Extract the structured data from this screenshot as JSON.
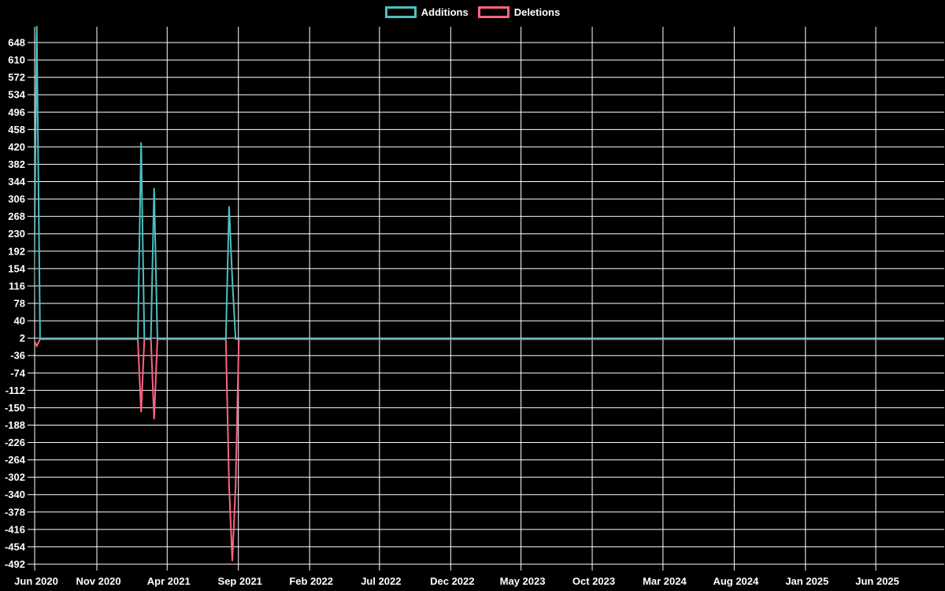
{
  "background": "#000000",
  "legend": {
    "items": [
      {
        "label": "Additions",
        "color": "#4bc0c0"
      },
      {
        "label": "Deletions",
        "color": "#ff6384"
      }
    ]
  },
  "chart_data": {
    "type": "line",
    "title": "",
    "xlabel": "",
    "ylabel": "",
    "grid": true,
    "legend_position": "top-center",
    "colors": {
      "grid": "#ffffff",
      "axis_text": "#ffffff",
      "additions": "#4bc0c0",
      "deletions": "#ff6384"
    },
    "x_axis": {
      "kind": "time",
      "start_date": "2020-06-20",
      "end_date": "2025-10-26",
      "tick_labels": [
        "Jun 2020",
        "Nov 2020",
        "Apr 2021",
        "Sep 2021",
        "Feb 2022",
        "Jul 2022",
        "Dec 2022",
        "May 2023",
        "Oct 2023",
        "Mar 2024",
        "Aug 2024",
        "Jan 2025",
        "Jun 2025"
      ],
      "tick_dates": [
        "2020-06-01",
        "2020-11-01",
        "2021-04-01",
        "2021-09-01",
        "2022-02-01",
        "2022-07-01",
        "2022-12-01",
        "2023-05-01",
        "2023-10-01",
        "2024-03-01",
        "2024-08-01",
        "2025-01-01",
        "2025-06-01"
      ]
    },
    "y_axis": {
      "min": -492,
      "max": 682,
      "tick_max": 648,
      "tick_min": -492,
      "tick_step": 38,
      "tick_labels": [
        "648",
        "610",
        "572",
        "534",
        "496",
        "458",
        "420",
        "382",
        "344",
        "306",
        "268",
        "230",
        "192",
        "154",
        "116",
        "78",
        "40",
        "2",
        "-36",
        "-74",
        "-112",
        "-150",
        "-188",
        "-226",
        "-264",
        "-302",
        "-340",
        "-378",
        "-416",
        "-454",
        "-492"
      ]
    },
    "series": [
      {
        "name": "Additions",
        "color": "#4bc0c0",
        "baseline": 0,
        "points": [
          {
            "date": "2020-06-25",
            "value": 684
          },
          {
            "date": "2021-02-02",
            "value": 430
          },
          {
            "date": "2021-03-01",
            "value": 330
          },
          {
            "date": "2021-08-14",
            "value": 290
          },
          {
            "date": "2021-08-21",
            "value": 130
          }
        ]
      },
      {
        "name": "Deletions",
        "color": "#ff6384",
        "baseline": 0,
        "points": [
          {
            "date": "2020-06-25",
            "value": -15
          },
          {
            "date": "2021-02-02",
            "value": -160
          },
          {
            "date": "2021-03-01",
            "value": -175
          },
          {
            "date": "2021-08-14",
            "value": -320
          },
          {
            "date": "2021-08-21",
            "value": -485
          },
          {
            "date": "2021-08-28",
            "value": -320
          }
        ]
      }
    ]
  }
}
